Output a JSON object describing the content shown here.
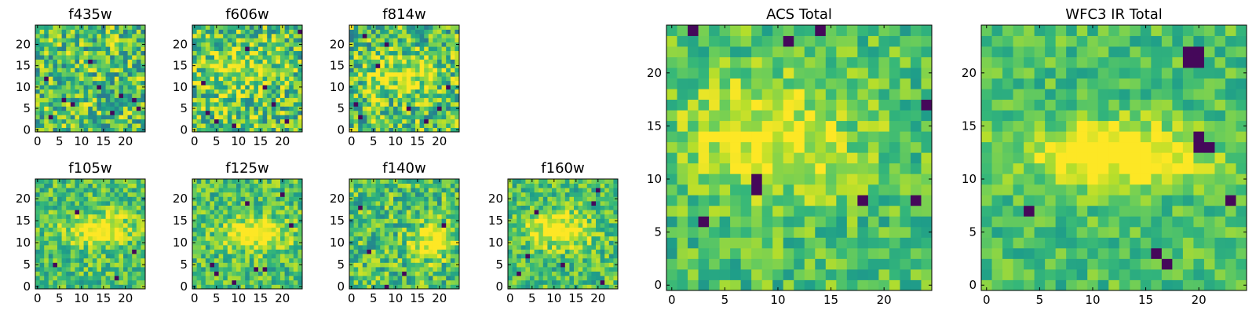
{
  "chart_data": [
    {
      "type": "heatmap",
      "title": "f435w",
      "colormap": "viridis",
      "grid_size": [
        25,
        25
      ],
      "xlim": [
        -0.5,
        24.5
      ],
      "ylim": [
        -0.5,
        24.5
      ],
      "xticks": [
        0,
        5,
        10,
        15,
        20
      ],
      "yticks": [
        0,
        5,
        10,
        15,
        20
      ],
      "grid": false,
      "origin": "lower",
      "noise": 0.5,
      "blobs": [],
      "dark_pixels": [
        [
          3,
          3
        ],
        [
          6,
          7
        ],
        [
          8,
          6
        ],
        [
          2,
          12
        ],
        [
          14,
          10
        ],
        [
          12,
          16
        ],
        [
          17,
          4
        ],
        [
          23,
          5
        ],
        [
          22,
          7
        ],
        [
          19,
          8
        ]
      ]
    },
    {
      "type": "heatmap",
      "title": "f606w",
      "colormap": "viridis",
      "grid_size": [
        25,
        25
      ],
      "xlim": [
        -0.5,
        24.5
      ],
      "ylim": [
        -0.5,
        24.5
      ],
      "xticks": [
        0,
        5,
        10,
        15,
        20
      ],
      "yticks": [
        0,
        5,
        10,
        15,
        20
      ],
      "grid": false,
      "origin": "lower",
      "noise": 0.5,
      "blobs": [
        {
          "cx": 10,
          "cy": 14,
          "sx": 6,
          "sy": 4,
          "amp": 0.25
        }
      ],
      "dark_pixels": [
        [
          2,
          11
        ],
        [
          3,
          4
        ],
        [
          5,
          2
        ],
        [
          9,
          1
        ],
        [
          16,
          10
        ],
        [
          18,
          6
        ],
        [
          21,
          2
        ],
        [
          24,
          23
        ],
        [
          12,
          19
        ]
      ]
    },
    {
      "type": "heatmap",
      "title": "f814w",
      "colormap": "viridis",
      "grid_size": [
        25,
        25
      ],
      "xlim": [
        -0.5,
        24.5
      ],
      "ylim": [
        -0.5,
        24.5
      ],
      "xticks": [
        0,
        5,
        10,
        15,
        20
      ],
      "yticks": [
        0,
        5,
        10,
        15,
        20
      ],
      "grid": false,
      "origin": "lower",
      "noise": 0.5,
      "blobs": [
        {
          "cx": 12,
          "cy": 13,
          "sx": 5,
          "sy": 3,
          "amp": 0.3
        }
      ],
      "dark_pixels": [
        [
          1,
          6
        ],
        [
          2,
          3
        ],
        [
          6,
          15
        ],
        [
          13,
          5
        ],
        [
          17,
          2
        ],
        [
          20,
          5
        ],
        [
          22,
          10
        ],
        [
          8,
          20
        ],
        [
          3,
          22
        ]
      ]
    },
    {
      "type": "heatmap",
      "title": "f105w",
      "colormap": "viridis",
      "grid_size": [
        25,
        25
      ],
      "xlim": [
        -0.5,
        24.5
      ],
      "ylim": [
        -0.5,
        24.5
      ],
      "xticks": [
        0,
        5,
        10,
        15,
        20
      ],
      "yticks": [
        0,
        5,
        10,
        15,
        20
      ],
      "grid": false,
      "origin": "lower",
      "noise": 0.35,
      "blobs": [
        {
          "cx": 14,
          "cy": 13,
          "sx": 5,
          "sy": 2.5,
          "amp": 0.4
        }
      ],
      "dark_pixels": [
        [
          9,
          17
        ],
        [
          4,
          5
        ],
        [
          22,
          8
        ],
        [
          18,
          2
        ]
      ]
    },
    {
      "type": "heatmap",
      "title": "f125w",
      "colormap": "viridis",
      "grid_size": [
        25,
        25
      ],
      "xlim": [
        -0.5,
        24.5
      ],
      "ylim": [
        -0.5,
        24.5
      ],
      "xticks": [
        0,
        5,
        10,
        15,
        20
      ],
      "yticks": [
        0,
        5,
        10,
        15,
        20
      ],
      "grid": false,
      "origin": "lower",
      "noise": 0.35,
      "blobs": [
        {
          "cx": 14,
          "cy": 12,
          "sx": 5,
          "sy": 2.5,
          "amp": 0.4
        }
      ],
      "dark_pixels": [
        [
          4,
          5
        ],
        [
          5,
          3
        ],
        [
          14,
          4
        ],
        [
          16,
          4
        ],
        [
          20,
          21
        ],
        [
          12,
          19
        ],
        [
          22,
          14
        ],
        [
          9,
          1
        ]
      ]
    },
    {
      "type": "heatmap",
      "title": "f140w",
      "colormap": "viridis",
      "grid_size": [
        25,
        25
      ],
      "xlim": [
        -0.5,
        24.5
      ],
      "ylim": [
        -0.5,
        24.5
      ],
      "xticks": [
        0,
        5,
        10,
        15,
        20
      ],
      "yticks": [
        0,
        5,
        10,
        15,
        20
      ],
      "grid": false,
      "origin": "lower",
      "noise": 0.4,
      "blobs": [
        {
          "cx": 18,
          "cy": 10,
          "sx": 3,
          "sy": 2.5,
          "amp": 0.4
        }
      ],
      "dark_pixels": [
        [
          8,
          0
        ],
        [
          21,
          14
        ],
        [
          4,
          8
        ],
        [
          12,
          3
        ],
        [
          2,
          18
        ]
      ]
    },
    {
      "type": "heatmap",
      "title": "f160w",
      "colormap": "viridis",
      "grid_size": [
        25,
        25
      ],
      "xlim": [
        -0.5,
        24.5
      ],
      "ylim": [
        -0.5,
        24.5
      ],
      "xticks": [
        0,
        5,
        10,
        15,
        20
      ],
      "yticks": [
        0,
        5,
        10,
        15,
        20
      ],
      "grid": false,
      "origin": "lower",
      "noise": 0.35,
      "blobs": [
        {
          "cx": 11,
          "cy": 13,
          "sx": 5,
          "sy": 2.5,
          "amp": 0.4
        }
      ],
      "dark_pixels": [
        [
          20,
          22
        ],
        [
          19,
          19
        ],
        [
          4,
          7
        ],
        [
          2,
          3
        ],
        [
          12,
          5
        ],
        [
          21,
          1
        ],
        [
          6,
          17
        ]
      ]
    },
    {
      "type": "heatmap",
      "title": "ACS Total",
      "colormap": "viridis",
      "grid_size": [
        25,
        25
      ],
      "xlim": [
        -0.5,
        24.5
      ],
      "ylim": [
        -0.5,
        24.5
      ],
      "xticks": [
        0,
        5,
        10,
        15,
        20
      ],
      "yticks": [
        0,
        5,
        10,
        15,
        20
      ],
      "grid": false,
      "origin": "lower",
      "noise": 0.3,
      "blobs": [
        {
          "cx": 9,
          "cy": 14,
          "sx": 6,
          "sy": 4,
          "amp": 0.3
        }
      ],
      "dark_pixels": [
        [
          2,
          24
        ],
        [
          14,
          24
        ],
        [
          11,
          23
        ],
        [
          3,
          6
        ],
        [
          8,
          10
        ],
        [
          8,
          9
        ],
        [
          18,
          8
        ],
        [
          23,
          8
        ],
        [
          24,
          17
        ]
      ]
    },
    {
      "type": "heatmap",
      "title": "WFC3 IR Total",
      "colormap": "viridis",
      "grid_size": [
        25,
        25
      ],
      "xlim": [
        -0.5,
        24.5
      ],
      "ylim": [
        -0.5,
        24.5
      ],
      "xticks": [
        0,
        5,
        10,
        15,
        20
      ],
      "yticks": [
        0,
        5,
        10,
        15,
        20
      ],
      "grid": false,
      "origin": "lower",
      "noise": 0.25,
      "blobs": [
        {
          "cx": 12,
          "cy": 12.5,
          "sx": 6,
          "sy": 2,
          "amp": 0.45
        }
      ],
      "dark_pixels": [
        [
          19,
          22
        ],
        [
          20,
          22
        ],
        [
          19,
          21
        ],
        [
          20,
          21
        ],
        [
          20,
          14
        ],
        [
          21,
          13
        ],
        [
          20,
          13
        ],
        [
          4,
          7
        ],
        [
          16,
          3
        ],
        [
          17,
          2
        ],
        [
          23,
          8
        ]
      ]
    }
  ]
}
